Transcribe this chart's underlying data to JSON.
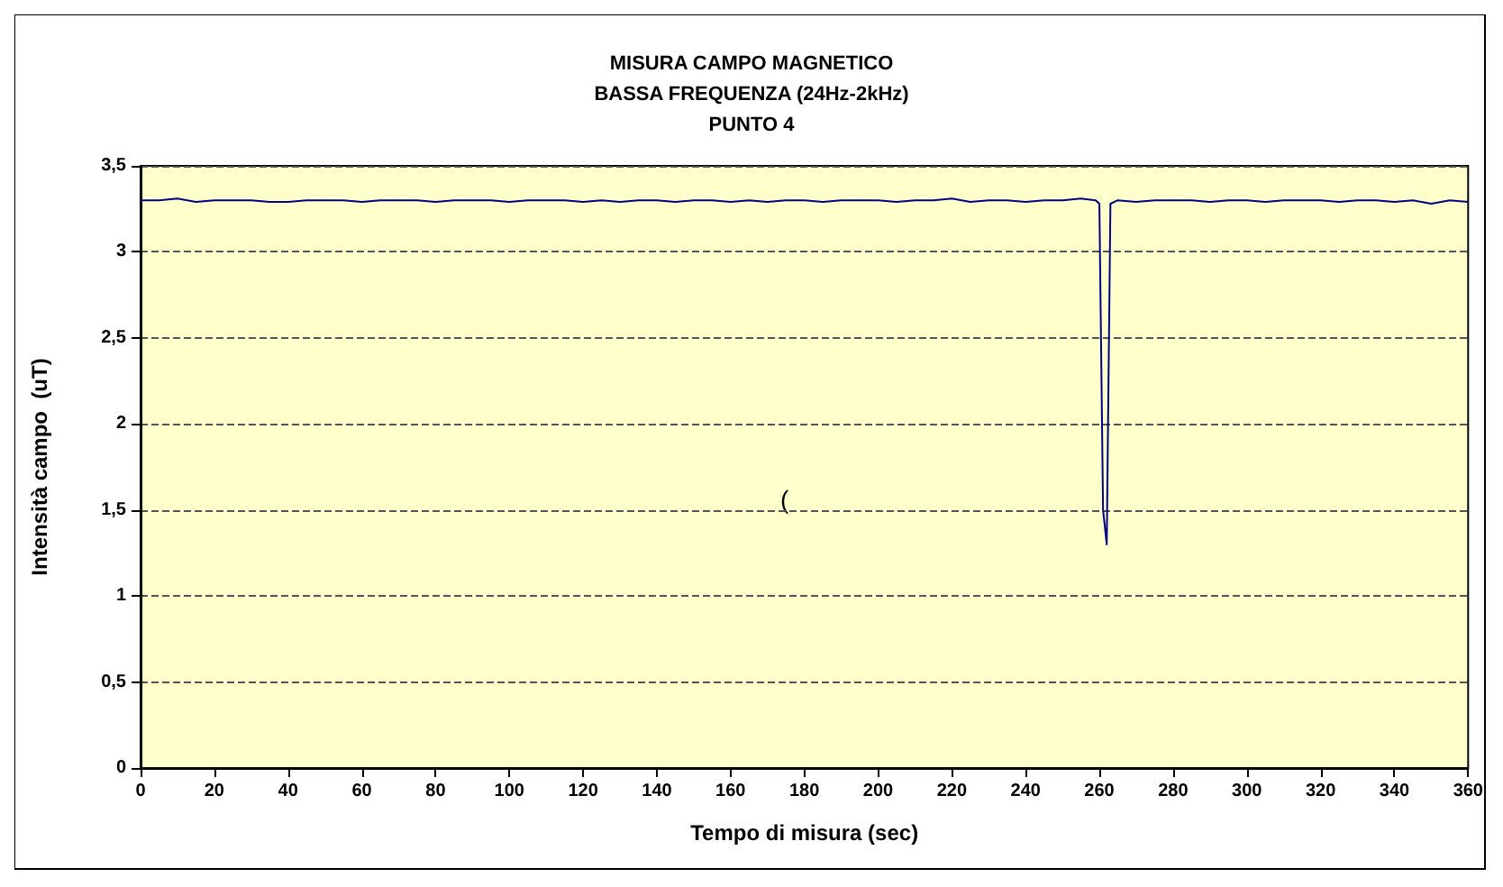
{
  "chart_data": {
    "type": "line",
    "title": "MISURA CAMPO MAGNETICO\nBASSA FREQUENZA (24Hz-2kHz)\nPUNTO 4",
    "xlabel": "Tempo di misura (sec)",
    "ylabel": "Intensità campo  (uT)",
    "x": [
      0,
      5,
      10,
      15,
      20,
      25,
      30,
      35,
      40,
      45,
      50,
      55,
      60,
      65,
      70,
      75,
      80,
      85,
      90,
      95,
      100,
      105,
      110,
      115,
      120,
      125,
      130,
      135,
      140,
      145,
      150,
      155,
      160,
      165,
      170,
      175,
      180,
      185,
      190,
      195,
      200,
      205,
      210,
      215,
      220,
      225,
      230,
      235,
      240,
      245,
      250,
      255,
      259,
      260,
      261,
      262,
      263,
      265,
      270,
      275,
      280,
      285,
      290,
      295,
      300,
      305,
      310,
      315,
      320,
      325,
      330,
      335,
      340,
      345,
      350,
      355,
      360
    ],
    "series": [
      {
        "color": "#000080",
        "values": [
          3.3,
          3.3,
          3.31,
          3.29,
          3.3,
          3.3,
          3.3,
          3.29,
          3.29,
          3.3,
          3.3,
          3.3,
          3.29,
          3.3,
          3.3,
          3.3,
          3.29,
          3.3,
          3.3,
          3.3,
          3.29,
          3.3,
          3.3,
          3.3,
          3.29,
          3.3,
          3.29,
          3.3,
          3.3,
          3.29,
          3.3,
          3.3,
          3.29,
          3.3,
          3.29,
          3.3,
          3.3,
          3.29,
          3.3,
          3.3,
          3.3,
          3.29,
          3.3,
          3.3,
          3.31,
          3.29,
          3.3,
          3.3,
          3.29,
          3.3,
          3.3,
          3.31,
          3.3,
          3.28,
          1.5,
          1.3,
          3.28,
          3.3,
          3.29,
          3.3,
          3.3,
          3.3,
          3.29,
          3.3,
          3.3,
          3.29,
          3.3,
          3.3,
          3.3,
          3.29,
          3.3,
          3.3,
          3.29,
          3.3,
          3.28,
          3.3,
          3.29
        ]
      }
    ],
    "xlim": [
      0,
      360
    ],
    "xticks": [
      0,
      20,
      40,
      60,
      80,
      100,
      120,
      140,
      160,
      180,
      200,
      220,
      240,
      260,
      280,
      300,
      320,
      340,
      360
    ],
    "ylim": [
      0,
      3.5
    ],
    "yticks": [
      0,
      {
        "value": 0.5,
        "label": "0,5"
      },
      1,
      {
        "value": 1.5,
        "label": "1,5"
      },
      2,
      {
        "value": 2.5,
        "label": "2,5"
      },
      3,
      {
        "value": 3.5,
        "label": "3,5"
      }
    ],
    "grid": "y",
    "marker": "none",
    "annotations": [
      "("
    ]
  }
}
